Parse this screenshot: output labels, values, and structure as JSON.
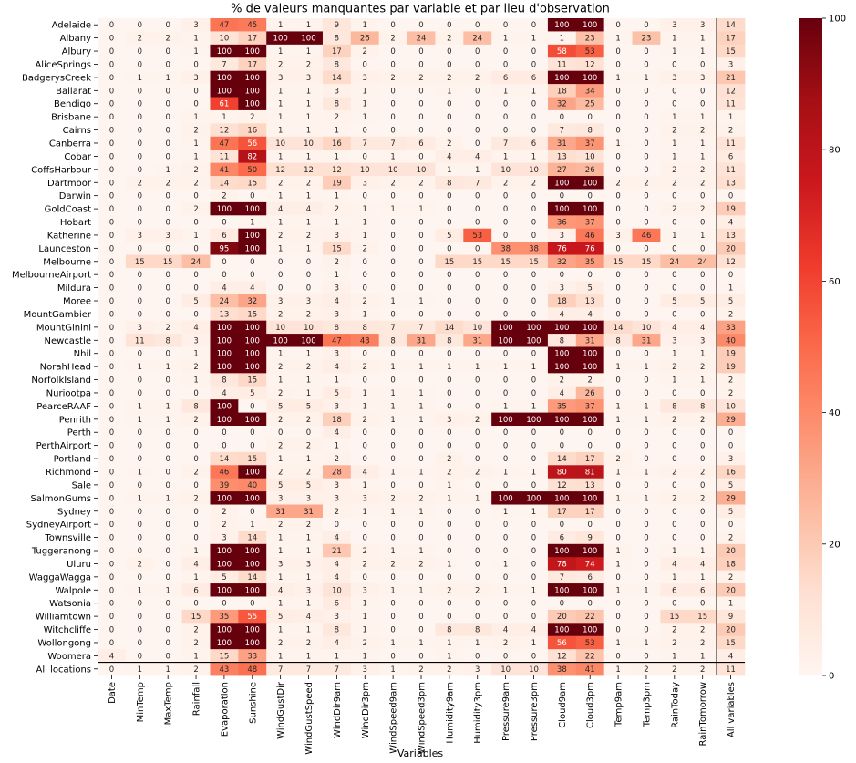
{
  "chart_data": {
    "type": "heatmap",
    "title": "% de valeurs manquantes par variable et par lieu d'observation",
    "xlabel": "Variables",
    "ylabel": "",
    "columns": [
      "Date",
      "MinTemp",
      "MaxTemp",
      "Rainfall",
      "Evaporation",
      "Sunshine",
      "WindGustDir",
      "WindGustSpeed",
      "WindDir9am",
      "WindDir3pm",
      "WindSpeed9am",
      "WindSpeed3pm",
      "Humidity9am",
      "Humidity3pm",
      "Pressure9am",
      "Pressure3pm",
      "Cloud9am",
      "Cloud3pm",
      "Temp9am",
      "Temp3pm",
      "RainToday",
      "RainTomorrow",
      "All variables"
    ],
    "rows": [
      "Adelaide",
      "Albany",
      "Albury",
      "AliceSprings",
      "BadgerysCreek",
      "Ballarat",
      "Bendigo",
      "Brisbane",
      "Cairns",
      "Canberra",
      "Cobar",
      "CoffsHarbour",
      "Dartmoor",
      "Darwin",
      "GoldCoast",
      "Hobart",
      "Katherine",
      "Launceston",
      "Melbourne",
      "MelbourneAirport",
      "Mildura",
      "Moree",
      "MountGambier",
      "MountGinini",
      "Newcastle",
      "Nhil",
      "NorahHead",
      "NorfolkIsland",
      "Nuriootpa",
      "PearceRAAF",
      "Penrith",
      "Perth",
      "PerthAirport",
      "Portland",
      "Richmond",
      "Sale",
      "SalmonGums",
      "Sydney",
      "SydneyAirport",
      "Townsville",
      "Tuggeranong",
      "Uluru",
      "WaggaWagga",
      "Walpole",
      "Watsonia",
      "Williamtown",
      "Witchcliffe",
      "Wollongong",
      "Woomera",
      "All locations"
    ],
    "values": [
      [
        0,
        0,
        0,
        3,
        47,
        45,
        1,
        1,
        9,
        1,
        0,
        0,
        0,
        0,
        0,
        0,
        100,
        100,
        0,
        0,
        3,
        3,
        14
      ],
      [
        0,
        2,
        2,
        1,
        10,
        17,
        100,
        100,
        8,
        26,
        2,
        24,
        2,
        24,
        1,
        1,
        1,
        23,
        1,
        23,
        1,
        1,
        17
      ],
      [
        0,
        0,
        0,
        1,
        100,
        100,
        1,
        1,
        17,
        2,
        0,
        0,
        0,
        0,
        0,
        0,
        58,
        53,
        0,
        0,
        1,
        1,
        15
      ],
      [
        0,
        0,
        0,
        0,
        7,
        17,
        2,
        2,
        8,
        0,
        0,
        0,
        0,
        0,
        0,
        0,
        11,
        12,
        0,
        0,
        0,
        0,
        3
      ],
      [
        0,
        1,
        1,
        3,
        100,
        100,
        3,
        3,
        14,
        3,
        2,
        2,
        2,
        2,
        6,
        6,
        100,
        100,
        1,
        1,
        3,
        3,
        21
      ],
      [
        0,
        0,
        0,
        0,
        100,
        100,
        1,
        1,
        3,
        1,
        0,
        0,
        1,
        0,
        1,
        1,
        18,
        34,
        0,
        0,
        0,
        0,
        12
      ],
      [
        0,
        0,
        0,
        0,
        61,
        100,
        1,
        1,
        8,
        1,
        0,
        0,
        0,
        0,
        0,
        0,
        32,
        25,
        0,
        0,
        0,
        0,
        11
      ],
      [
        0,
        0,
        0,
        1,
        1,
        2,
        1,
        1,
        2,
        1,
        0,
        0,
        0,
        0,
        0,
        0,
        0,
        0,
        0,
        0,
        1,
        1,
        1
      ],
      [
        0,
        0,
        0,
        2,
        12,
        16,
        1,
        1,
        1,
        0,
        0,
        0,
        0,
        0,
        0,
        0,
        7,
        8,
        0,
        0,
        2,
        2,
        2
      ],
      [
        0,
        0,
        0,
        1,
        47,
        56,
        10,
        10,
        16,
        7,
        7,
        6,
        2,
        0,
        7,
        6,
        31,
        37,
        1,
        0,
        1,
        1,
        11
      ],
      [
        0,
        0,
        0,
        1,
        11,
        82,
        1,
        1,
        1,
        0,
        1,
        0,
        4,
        4,
        1,
        1,
        13,
        10,
        0,
        0,
        1,
        1,
        6
      ],
      [
        0,
        0,
        1,
        2,
        41,
        50,
        12,
        12,
        12,
        10,
        10,
        10,
        1,
        1,
        10,
        10,
        27,
        26,
        0,
        0,
        2,
        2,
        11
      ],
      [
        0,
        2,
        2,
        2,
        14,
        15,
        2,
        2,
        19,
        3,
        2,
        2,
        8,
        7,
        2,
        2,
        100,
        100,
        2,
        2,
        2,
        2,
        13
      ],
      [
        0,
        0,
        0,
        0,
        2,
        0,
        1,
        1,
        1,
        0,
        0,
        0,
        0,
        0,
        0,
        0,
        0,
        0,
        0,
        0,
        0,
        0,
        0
      ],
      [
        0,
        0,
        0,
        2,
        100,
        100,
        4,
        4,
        2,
        1,
        1,
        1,
        0,
        0,
        0,
        0,
        100,
        100,
        0,
        0,
        2,
        2,
        19
      ],
      [
        0,
        0,
        0,
        0,
        0,
        1,
        1,
        1,
        1,
        1,
        0,
        0,
        0,
        0,
        0,
        0,
        36,
        37,
        0,
        0,
        0,
        0,
        4
      ],
      [
        0,
        3,
        3,
        1,
        6,
        100,
        2,
        2,
        3,
        1,
        0,
        0,
        5,
        53,
        0,
        0,
        3,
        46,
        3,
        46,
        1,
        1,
        13
      ],
      [
        0,
        0,
        0,
        0,
        95,
        100,
        1,
        1,
        15,
        2,
        0,
        0,
        0,
        0,
        38,
        38,
        76,
        76,
        0,
        0,
        0,
        0,
        20
      ],
      [
        0,
        15,
        15,
        24,
        0,
        0,
        0,
        0,
        2,
        0,
        0,
        0,
        15,
        15,
        15,
        15,
        32,
        35,
        15,
        15,
        24,
        24,
        12
      ],
      [
        0,
        0,
        0,
        0,
        0,
        0,
        0,
        0,
        1,
        0,
        0,
        0,
        0,
        0,
        0,
        0,
        0,
        0,
        0,
        0,
        0,
        0,
        0
      ],
      [
        0,
        0,
        0,
        0,
        4,
        4,
        0,
        0,
        3,
        0,
        0,
        0,
        0,
        0,
        0,
        0,
        3,
        5,
        0,
        0,
        0,
        0,
        1
      ],
      [
        0,
        0,
        0,
        5,
        24,
        32,
        3,
        3,
        4,
        2,
        1,
        1,
        0,
        0,
        0,
        0,
        18,
        13,
        0,
        0,
        5,
        5,
        5
      ],
      [
        0,
        0,
        0,
        0,
        13,
        15,
        2,
        2,
        3,
        1,
        0,
        0,
        0,
        0,
        0,
        0,
        4,
        4,
        0,
        0,
        0,
        0,
        2
      ],
      [
        0,
        3,
        2,
        4,
        100,
        100,
        10,
        10,
        8,
        8,
        7,
        7,
        14,
        10,
        100,
        100,
        100,
        100,
        14,
        10,
        4,
        4,
        33
      ],
      [
        0,
        11,
        8,
        3,
        100,
        100,
        100,
        100,
        47,
        43,
        8,
        31,
        8,
        31,
        100,
        100,
        8,
        31,
        8,
        31,
        3,
        3,
        40
      ],
      [
        0,
        0,
        0,
        1,
        100,
        100,
        1,
        1,
        3,
        0,
        0,
        0,
        0,
        0,
        0,
        0,
        100,
        100,
        0,
        0,
        1,
        1,
        19
      ],
      [
        0,
        1,
        1,
        2,
        100,
        100,
        2,
        2,
        4,
        2,
        1,
        1,
        1,
        1,
        1,
        1,
        100,
        100,
        1,
        1,
        2,
        2,
        19
      ],
      [
        0,
        0,
        0,
        1,
        8,
        15,
        1,
        1,
        1,
        0,
        0,
        0,
        0,
        0,
        0,
        0,
        2,
        2,
        0,
        0,
        1,
        1,
        2
      ],
      [
        0,
        0,
        0,
        0,
        4,
        5,
        2,
        1,
        5,
        1,
        1,
        1,
        0,
        0,
        0,
        0,
        4,
        26,
        0,
        0,
        0,
        0,
        2
      ],
      [
        0,
        1,
        1,
        8,
        100,
        0,
        5,
        5,
        3,
        1,
        1,
        1,
        0,
        0,
        1,
        1,
        35,
        37,
        1,
        1,
        8,
        8,
        10
      ],
      [
        0,
        1,
        1,
        2,
        100,
        100,
        2,
        2,
        18,
        2,
        1,
        1,
        3,
        2,
        100,
        100,
        100,
        100,
        1,
        1,
        2,
        2,
        29
      ],
      [
        0,
        0,
        0,
        0,
        0,
        0,
        0,
        0,
        4,
        0,
        0,
        0,
        0,
        0,
        0,
        0,
        0,
        0,
        0,
        0,
        0,
        0,
        0
      ],
      [
        0,
        0,
        0,
        0,
        0,
        0,
        2,
        2,
        1,
        0,
        0,
        0,
        0,
        0,
        0,
        0,
        0,
        0,
        0,
        0,
        0,
        0,
        0
      ],
      [
        0,
        0,
        0,
        0,
        14,
        15,
        1,
        1,
        2,
        0,
        0,
        0,
        2,
        0,
        0,
        0,
        14,
        17,
        2,
        0,
        0,
        0,
        3
      ],
      [
        0,
        1,
        0,
        2,
        46,
        100,
        2,
        2,
        28,
        4,
        1,
        1,
        2,
        2,
        1,
        1,
        80,
        81,
        1,
        1,
        2,
        2,
        16
      ],
      [
        0,
        0,
        0,
        0,
        39,
        40,
        5,
        5,
        3,
        1,
        0,
        0,
        1,
        0,
        0,
        0,
        12,
        13,
        0,
        0,
        0,
        0,
        5
      ],
      [
        0,
        1,
        1,
        2,
        100,
        100,
        3,
        3,
        3,
        3,
        2,
        2,
        1,
        1,
        100,
        100,
        100,
        100,
        1,
        1,
        2,
        2,
        29
      ],
      [
        0,
        0,
        0,
        0,
        2,
        0,
        31,
        31,
        2,
        1,
        1,
        1,
        0,
        0,
        1,
        1,
        17,
        17,
        0,
        0,
        0,
        0,
        5
      ],
      [
        0,
        0,
        0,
        0,
        2,
        1,
        2,
        2,
        0,
        0,
        0,
        0,
        0,
        0,
        0,
        0,
        0,
        0,
        0,
        0,
        0,
        0,
        0
      ],
      [
        0,
        0,
        0,
        0,
        3,
        14,
        1,
        1,
        4,
        0,
        0,
        0,
        0,
        0,
        0,
        0,
        6,
        9,
        0,
        0,
        0,
        0,
        2
      ],
      [
        0,
        0,
        0,
        1,
        100,
        100,
        1,
        1,
        21,
        2,
        1,
        1,
        0,
        0,
        0,
        0,
        100,
        100,
        1,
        0,
        1,
        1,
        20
      ],
      [
        0,
        2,
        0,
        4,
        100,
        100,
        3,
        3,
        4,
        2,
        2,
        2,
        1,
        0,
        1,
        0,
        78,
        74,
        1,
        0,
        4,
        4,
        18
      ],
      [
        0,
        0,
        0,
        1,
        5,
        14,
        1,
        1,
        4,
        0,
        0,
        0,
        0,
        0,
        0,
        0,
        7,
        6,
        0,
        0,
        1,
        1,
        2
      ],
      [
        0,
        1,
        1,
        6,
        100,
        100,
        4,
        3,
        10,
        3,
        1,
        1,
        2,
        2,
        1,
        1,
        100,
        100,
        1,
        1,
        6,
        6,
        20
      ],
      [
        0,
        0,
        0,
        0,
        0,
        0,
        1,
        1,
        6,
        1,
        0,
        0,
        0,
        0,
        0,
        0,
        0,
        0,
        0,
        0,
        0,
        0,
        1
      ],
      [
        0,
        0,
        0,
        15,
        35,
        55,
        5,
        4,
        3,
        1,
        0,
        0,
        0,
        0,
        0,
        0,
        20,
        22,
        0,
        0,
        15,
        15,
        9
      ],
      [
        0,
        0,
        0,
        2,
        100,
        100,
        1,
        1,
        8,
        1,
        0,
        0,
        8,
        8,
        4,
        4,
        100,
        100,
        0,
        0,
        2,
        2,
        20
      ],
      [
        0,
        0,
        0,
        2,
        100,
        100,
        2,
        2,
        4,
        2,
        1,
        1,
        1,
        1,
        2,
        1,
        56,
        53,
        1,
        1,
        2,
        2,
        15
      ],
      [
        4,
        0,
        0,
        1,
        15,
        33,
        1,
        1,
        1,
        1,
        0,
        0,
        1,
        0,
        0,
        0,
        12,
        22,
        0,
        0,
        1,
        1,
        4
      ],
      [
        0,
        1,
        1,
        2,
        43,
        48,
        7,
        7,
        7,
        3,
        1,
        2,
        2,
        3,
        10,
        10,
        38,
        41,
        1,
        2,
        2,
        2,
        11
      ]
    ],
    "vmin": 0,
    "vmax": 100,
    "colorbar_ticks": [
      0,
      20,
      40,
      60,
      80,
      100
    ],
    "colormap": "Reds",
    "separators": [
      "before last column",
      "before last row"
    ]
  },
  "palette": {
    "low": "#fff5f0",
    "high": "#67000d",
    "separator": "#000000"
  }
}
